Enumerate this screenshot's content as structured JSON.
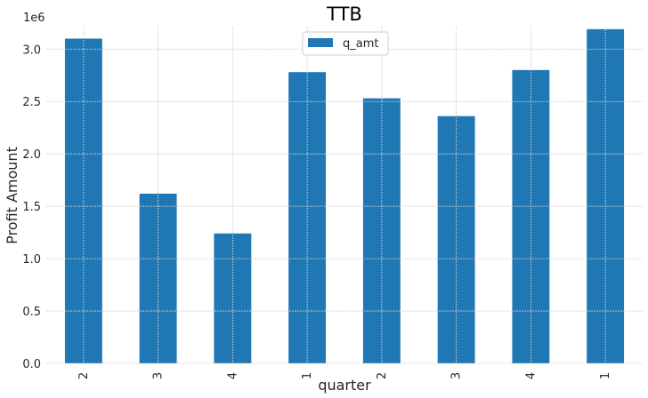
{
  "chart_data": {
    "type": "bar",
    "title": "TTB",
    "xlabel": "quarter",
    "ylabel": "Profit Amount",
    "y_offset_label": "1e6",
    "categories": [
      "2",
      "3",
      "4",
      "1",
      "2",
      "3",
      "4",
      "1"
    ],
    "series": [
      {
        "name": "q_amt",
        "color": "#1f77b4",
        "values": [
          3100000,
          1620000,
          1240000,
          2780000,
          2530000,
          2360000,
          2800000,
          3190000
        ]
      }
    ],
    "ylim": [
      0,
      3350000
    ],
    "yticks": [
      0,
      500000,
      1000000,
      1500000,
      2000000,
      2500000,
      3000000
    ],
    "ytick_labels": [
      "0.0",
      "0.5",
      "1.0",
      "1.5",
      "2.0",
      "2.5",
      "3.0"
    ],
    "grid": true,
    "legend_position": "top-center"
  }
}
